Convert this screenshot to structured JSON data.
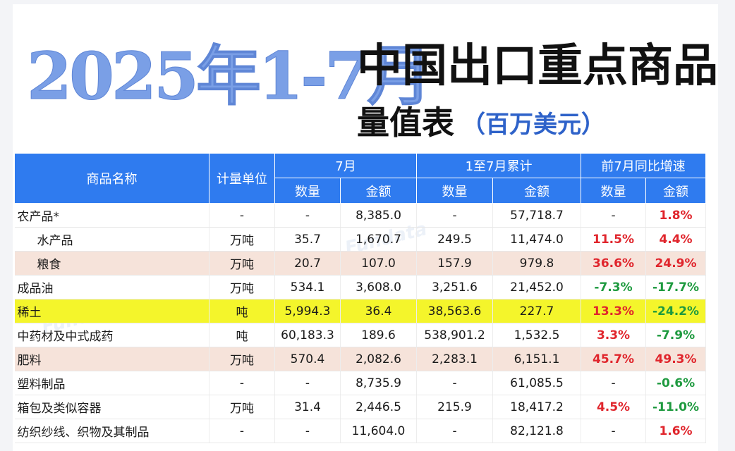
{
  "title": {
    "year_part": "2025年1-7月",
    "main": "中国出口重点商品",
    "sub": "量值表",
    "unit": "（百万美元）"
  },
  "watermark_text": "Fundata",
  "table": {
    "headers": {
      "name": "商品名称",
      "unit": "计量单位",
      "group_month": "7月",
      "group_cumulative": "1至7月累计",
      "group_growth": "前7月同比增速",
      "quantity": "数量",
      "amount": "金额"
    },
    "rows": [
      {
        "name": "农产品*",
        "unit": "-",
        "m_qty": "-",
        "m_amt": "8,385.0",
        "c_qty": "-",
        "c_amt": "57,718.7",
        "g_qty": "-",
        "g_amt": "1.8%",
        "g_qty_color": "",
        "g_amt_color": "red",
        "indent": false,
        "highlight": ""
      },
      {
        "name": "水产品",
        "unit": "万吨",
        "m_qty": "35.7",
        "m_amt": "1,670.7",
        "c_qty": "249.5",
        "c_amt": "11,474.0",
        "g_qty": "11.5%",
        "g_amt": "4.4%",
        "g_qty_color": "red",
        "g_amt_color": "red",
        "indent": true,
        "highlight": ""
      },
      {
        "name": "粮食",
        "unit": "万吨",
        "m_qty": "20.7",
        "m_amt": "107.0",
        "c_qty": "157.9",
        "c_amt": "979.8",
        "g_qty": "36.6%",
        "g_amt": "24.9%",
        "g_qty_color": "red",
        "g_amt_color": "red",
        "indent": true,
        "highlight": "peach"
      },
      {
        "name": "成品油",
        "unit": "万吨",
        "m_qty": "534.1",
        "m_amt": "3,608.0",
        "c_qty": "3,251.6",
        "c_amt": "21,452.0",
        "g_qty": "-7.3%",
        "g_amt": "-17.7%",
        "g_qty_color": "green",
        "g_amt_color": "green",
        "indent": false,
        "highlight": ""
      },
      {
        "name": "稀土",
        "unit": "吨",
        "m_qty": "5,994.3",
        "m_amt": "36.4",
        "c_qty": "38,563.6",
        "c_amt": "227.7",
        "g_qty": "13.3%",
        "g_amt": "-24.2%",
        "g_qty_color": "red",
        "g_amt_color": "green",
        "indent": false,
        "highlight": "yellow"
      },
      {
        "name": "中药材及中式成药",
        "unit": "吨",
        "m_qty": "60,183.3",
        "m_amt": "189.6",
        "c_qty": "538,901.2",
        "c_amt": "1,532.5",
        "g_qty": "3.3%",
        "g_amt": "-7.9%",
        "g_qty_color": "red",
        "g_amt_color": "green",
        "indent": false,
        "highlight": ""
      },
      {
        "name": "肥料",
        "unit": "万吨",
        "m_qty": "570.4",
        "m_amt": "2,082.6",
        "c_qty": "2,283.1",
        "c_amt": "6,151.1",
        "g_qty": "45.7%",
        "g_amt": "49.3%",
        "g_qty_color": "red",
        "g_amt_color": "red",
        "indent": false,
        "highlight": "peach"
      },
      {
        "name": "塑料制品",
        "unit": "-",
        "m_qty": "-",
        "m_amt": "8,735.9",
        "c_qty": "-",
        "c_amt": "61,085.5",
        "g_qty": "-",
        "g_amt": "-0.6%",
        "g_qty_color": "",
        "g_amt_color": "green",
        "indent": false,
        "highlight": ""
      },
      {
        "name": "箱包及类似容器",
        "unit": "万吨",
        "m_qty": "31.4",
        "m_amt": "2,446.5",
        "c_qty": "215.9",
        "c_amt": "18,417.2",
        "g_qty": "4.5%",
        "g_amt": "-11.0%",
        "g_qty_color": "red",
        "g_amt_color": "green",
        "indent": false,
        "highlight": ""
      },
      {
        "name": "纺织纱线、织物及其制品",
        "unit": "-",
        "m_qty": "-",
        "m_amt": "11,604.0",
        "c_qty": "-",
        "c_amt": "82,121.8",
        "g_qty": "-",
        "g_amt": "1.6%",
        "g_qty_color": "",
        "g_amt_color": "red",
        "indent": false,
        "highlight": ""
      }
    ]
  }
}
